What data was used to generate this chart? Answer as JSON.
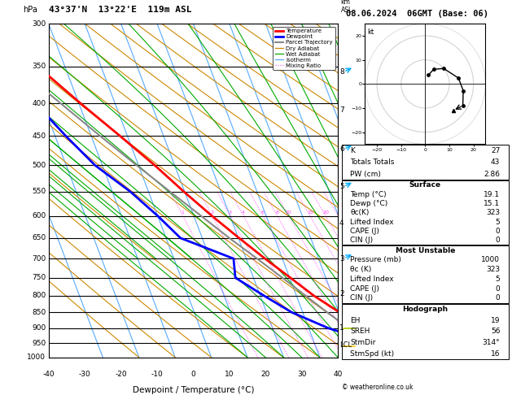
{
  "title_left": "43°37'N  13°22'E  119m ASL",
  "title_right": "08.06.2024  06GMT (Base: 06)",
  "xlabel": "Dewpoint / Temperature (°C)",
  "pressure_levels": [
    300,
    350,
    400,
    450,
    500,
    550,
    600,
    650,
    700,
    750,
    800,
    850,
    900,
    950,
    1000
  ],
  "isotherm_color": "#55aaff",
  "dry_adiabat_color": "#cc8800",
  "wet_adiabat_color": "#00aa00",
  "mixing_ratio_color": "#ff44ff",
  "mixing_ratio_values": [
    1,
    2,
    3,
    4,
    6,
    8,
    10,
    15,
    20,
    25
  ],
  "km_ticks": [
    1,
    2,
    3,
    4,
    5,
    6,
    7,
    8
  ],
  "km_pressures": [
    898,
    795,
    700,
    616,
    540,
    472,
    410,
    357
  ],
  "lcl_pressure": 957,
  "legend_entries": [
    {
      "label": "Temperature",
      "color": "#ff0000",
      "lw": 2.0,
      "ls": "-"
    },
    {
      "label": "Dewpoint",
      "color": "#0000ff",
      "lw": 2.0,
      "ls": "-"
    },
    {
      "label": "Parcel Trajectory",
      "color": "#888888",
      "lw": 1.5,
      "ls": "-"
    },
    {
      "label": "Dry Adiabat",
      "color": "#cc8800",
      "lw": 0.9,
      "ls": "-"
    },
    {
      "label": "Wet Adiabat",
      "color": "#00aa00",
      "lw": 0.9,
      "ls": "-"
    },
    {
      "label": "Isotherm",
      "color": "#55aaff",
      "lw": 0.9,
      "ls": "-"
    },
    {
      "label": "Mixing Ratio",
      "color": "#ff44ff",
      "lw": 0.8,
      "ls": ":"
    }
  ],
  "temp_profile": {
    "pressure": [
      1000,
      970,
      957,
      925,
      900,
      850,
      800,
      750,
      700,
      650,
      600,
      550,
      500,
      450,
      400,
      350,
      300
    ],
    "temperature": [
      20.5,
      19.8,
      19.1,
      17.5,
      14.8,
      10.2,
      4.8,
      0.2,
      -4.8,
      -9.8,
      -15.0,
      -20.2,
      -25.5,
      -32.0,
      -39.5,
      -47.5,
      -56.5
    ]
  },
  "dewpoint_profile": {
    "pressure": [
      1000,
      970,
      957,
      925,
      900,
      850,
      800,
      750,
      700,
      650,
      600,
      550,
      500,
      450,
      400,
      350,
      300
    ],
    "temperature": [
      16.0,
      15.5,
      15.1,
      11.5,
      5.5,
      -3.0,
      -9.0,
      -15.0,
      -13.5,
      -26.0,
      -30.0,
      -35.0,
      -42.0,
      -47.0,
      -52.0,
      -58.0,
      -65.0
    ]
  },
  "parcel_profile": {
    "pressure": [
      957,
      925,
      900,
      850,
      800,
      750,
      700,
      650,
      600,
      550,
      500,
      450,
      400,
      350,
      300
    ],
    "temperature": [
      15.1,
      13.2,
      11.0,
      6.8,
      2.5,
      -2.0,
      -7.0,
      -12.5,
      -18.0,
      -24.0,
      -30.5,
      -37.5,
      -45.0,
      -53.5,
      -62.5
    ]
  },
  "hodo_points": [
    [
      200,
      4
    ],
    [
      210,
      7
    ],
    [
      230,
      10
    ],
    [
      260,
      14
    ],
    [
      280,
      16
    ],
    [
      300,
      18
    ]
  ],
  "storm_dir": 314,
  "storm_spd": 16,
  "stats": {
    "K": "27",
    "Totals Totals": "43",
    "PW (cm)": "2.86",
    "surf_temp": "19.1",
    "surf_dewp": "15.1",
    "surf_the": "323",
    "surf_li": "5",
    "surf_cape": "0",
    "surf_cin": "0",
    "mu_pres": "1000",
    "mu_the": "323",
    "mu_li": "5",
    "mu_cape": "0",
    "mu_cin": "0",
    "eh": "19",
    "sreh": "56",
    "stmdir": "314°",
    "stmspd": "16"
  }
}
